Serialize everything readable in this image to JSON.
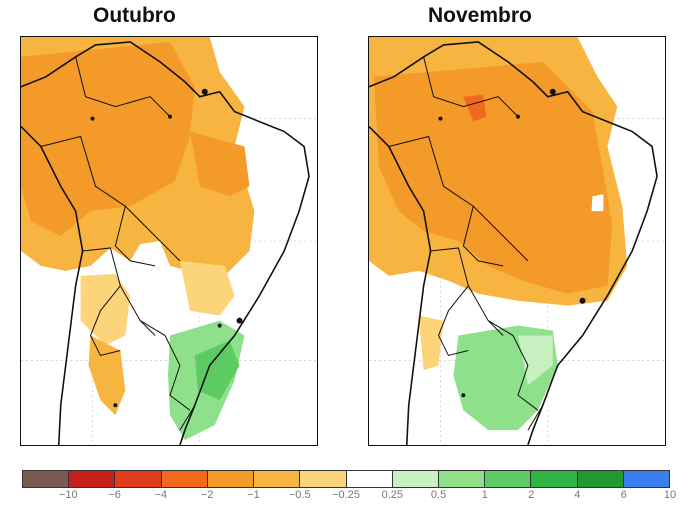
{
  "panels": [
    {
      "title": "Outubro"
    },
    {
      "title": "Novembro"
    }
  ],
  "legend": {
    "colors": [
      "#7a5a52",
      "#c81e1e",
      "#e03c1e",
      "#f06a1e",
      "#f49a28",
      "#f8b440",
      "#fcd47a",
      "#ffffff",
      "#c8f0c0",
      "#8ee08a",
      "#5ccc62",
      "#2fb443",
      "#1f9a36",
      "#3a7ef0"
    ],
    "labels": [
      "−10",
      "−6",
      "−4",
      "−2",
      "−1",
      "−0.5",
      "−0.25",
      "0.25",
      "0.5",
      "1",
      "2",
      "4",
      "6",
      "10"
    ]
  },
  "palette": {
    "deep_orange": "#f49a28",
    "orange": "#f8b440",
    "light_orange": "#fcd47a",
    "red_orange": "#f06a1e",
    "light_green": "#8ee08a",
    "mid_green": "#5ccc62",
    "pale_green": "#c8f0c0"
  }
}
